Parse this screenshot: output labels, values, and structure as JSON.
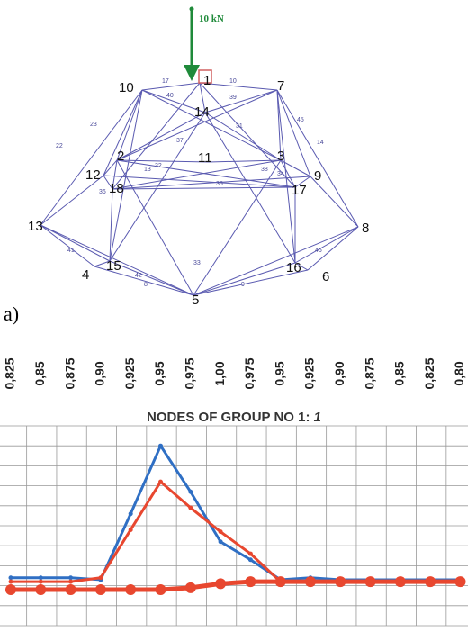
{
  "diagram": {
    "load_label": "10 kN",
    "panel_label": "a)",
    "nodes": [
      "1",
      "2",
      "3",
      "4",
      "5",
      "6",
      "7",
      "8",
      "9",
      "10",
      "11",
      "12",
      "13",
      "14",
      "15",
      "16",
      "17",
      "18"
    ],
    "members": [
      "17",
      "40",
      "10",
      "39",
      "22",
      "23",
      "13",
      "45",
      "14",
      "35",
      "33",
      "42",
      "9",
      "8",
      "41",
      "46",
      "36",
      "34",
      "37",
      "31",
      "32",
      "38"
    ]
  },
  "chart_data": {
    "type": "line",
    "title": "NODES OF GROUP NO 1: ",
    "title_suffix": "1",
    "categories": [
      "0,825",
      "0,85",
      "0,875",
      "0,90",
      "0,925",
      "0,95",
      "0,975",
      "1,00",
      "0,975",
      "0,95",
      "0,925",
      "0,90",
      "0,875",
      "0,85",
      "0,825",
      "0,80"
    ],
    "ylim": [
      0,
      10
    ],
    "yticks": [
      0,
      1,
      2,
      3,
      4,
      5,
      6,
      7,
      8,
      9,
      10
    ],
    "grid": true,
    "series": [
      {
        "color": "#2f6fc4",
        "marker": "small",
        "values": [
          2.4,
          2.4,
          2.4,
          2.3,
          5.6,
          9.0,
          6.7,
          4.2,
          3.3,
          2.3,
          2.4,
          2.3,
          2.3,
          2.3,
          2.3,
          2.3
        ]
      },
      {
        "color": "#e8472f",
        "marker": "small",
        "values": [
          2.2,
          2.2,
          2.2,
          2.4,
          4.8,
          7.2,
          5.9,
          4.7,
          3.6,
          2.2,
          2.2,
          2.2,
          2.2,
          2.2,
          2.2,
          2.2
        ]
      },
      {
        "color": "#e8472f",
        "marker": "large",
        "values": [
          1.8,
          1.8,
          1.8,
          1.8,
          1.8,
          1.8,
          1.9,
          2.1,
          2.2,
          2.2,
          2.2,
          2.2,
          2.2,
          2.2,
          2.2,
          2.2
        ]
      }
    ]
  }
}
